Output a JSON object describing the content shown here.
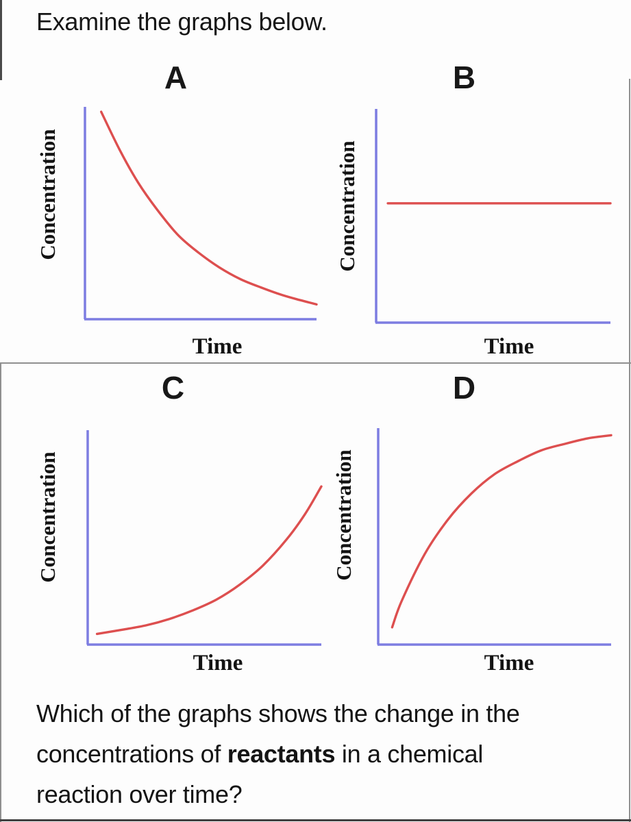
{
  "page": {
    "prompt": "Examine the graphs below.",
    "question": {
      "line1": "Which of the graphs shows the change in the",
      "line2_prefix": "concentrations of ",
      "line2_bold": "reactants",
      "line2_suffix": " in a chemical",
      "line3": "reaction over time?"
    }
  },
  "colors": {
    "axis": "#7d7de1",
    "curve": "#dd4f4f",
    "frame_gray": "#8f8f8f",
    "frame_dark": "#4a4a4a",
    "bottom_rule": "#3e3e3e"
  },
  "chart_data": [
    {
      "type": "line",
      "title": "A",
      "xlabel": "Time",
      "ylabel": "Concentration",
      "trend": "exponential-decay",
      "x_ticks": [],
      "y_ticks": [],
      "points": [
        [
          0.07,
          0.98
        ],
        [
          0.15,
          0.8
        ],
        [
          0.23,
          0.645
        ],
        [
          0.31,
          0.52
        ],
        [
          0.4,
          0.4
        ],
        [
          0.49,
          0.315
        ],
        [
          0.58,
          0.245
        ],
        [
          0.67,
          0.19
        ],
        [
          0.76,
          0.15
        ],
        [
          0.85,
          0.115
        ],
        [
          0.93,
          0.09
        ],
        [
          1.0,
          0.07
        ]
      ]
    },
    {
      "type": "line",
      "title": "B",
      "xlabel": "Time",
      "ylabel": "Concentration",
      "trend": "constant",
      "x_ticks": [],
      "y_ticks": [],
      "points": [
        [
          0.05,
          0.56
        ],
        [
          1.0,
          0.56
        ]
      ]
    },
    {
      "type": "line",
      "title": "C",
      "xlabel": "Time",
      "ylabel": "Concentration",
      "trend": "exponential-growth",
      "x_ticks": [],
      "y_ticks": [],
      "points": [
        [
          0.04,
          0.05
        ],
        [
          0.15,
          0.07
        ],
        [
          0.25,
          0.09
        ],
        [
          0.35,
          0.12
        ],
        [
          0.45,
          0.16
        ],
        [
          0.55,
          0.21
        ],
        [
          0.65,
          0.28
        ],
        [
          0.75,
          0.37
        ],
        [
          0.85,
          0.49
        ],
        [
          0.93,
          0.61
        ],
        [
          1.0,
          0.74
        ]
      ]
    },
    {
      "type": "line",
      "title": "D",
      "xlabel": "Time",
      "ylabel": "Concentration",
      "trend": "saturating-growth",
      "x_ticks": [],
      "y_ticks": [],
      "points": [
        [
          0.06,
          0.08
        ],
        [
          0.1,
          0.2
        ],
        [
          0.2,
          0.42
        ],
        [
          0.3,
          0.58
        ],
        [
          0.4,
          0.7
        ],
        [
          0.5,
          0.79
        ],
        [
          0.6,
          0.85
        ],
        [
          0.7,
          0.9
        ],
        [
          0.8,
          0.93
        ],
        [
          0.9,
          0.956
        ],
        [
          1.0,
          0.97
        ]
      ]
    }
  ]
}
